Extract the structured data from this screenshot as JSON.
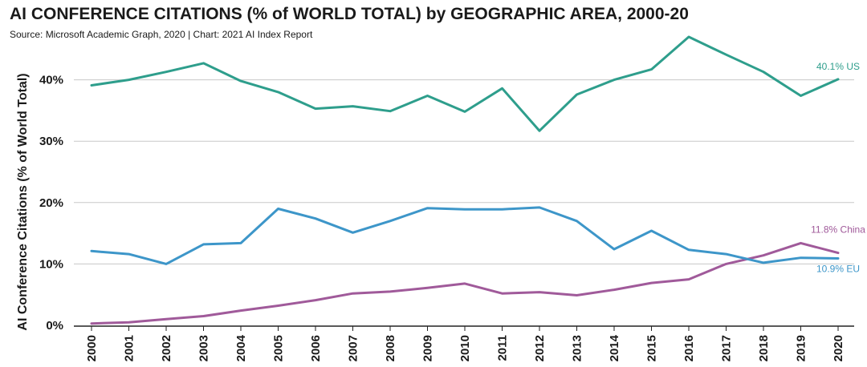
{
  "chart_data": {
    "type": "line",
    "title": "AI CONFERENCE CITATIONS (% of WORLD TOTAL) by GEOGRAPHIC AREA, 2000-20",
    "subtitle": "Source: Microsoft Academic Graph, 2020 | Chart: 2021 AI Index Report",
    "xlabel": "",
    "ylabel": "AI Conference Citations (% of World Total)",
    "ylim": [
      0,
      47
    ],
    "y_ticks": [
      {
        "value": 0,
        "label": "0%"
      },
      {
        "value": 10,
        "label": "10%"
      },
      {
        "value": 20,
        "label": "20%"
      },
      {
        "value": 30,
        "label": "30%"
      },
      {
        "value": 40,
        "label": "40%"
      }
    ],
    "categories": [
      "2000",
      "2001",
      "2002",
      "2003",
      "2004",
      "2005",
      "2006",
      "2007",
      "2008",
      "2009",
      "2010",
      "2011",
      "2012",
      "2013",
      "2014",
      "2015",
      "2016",
      "2017",
      "2018",
      "2019",
      "2020"
    ],
    "series": [
      {
        "name": "US",
        "color": "#2e9e8c",
        "end_label": "40.1% US",
        "values": [
          39.1,
          40.0,
          41.3,
          42.7,
          39.8,
          38.0,
          35.3,
          35.7,
          34.9,
          37.4,
          34.8,
          38.6,
          31.7,
          37.6,
          40.0,
          41.7,
          47.0,
          44.1,
          41.3,
          37.4,
          40.1
        ]
      },
      {
        "name": "EU",
        "color": "#3d96c9",
        "end_label": "10.9% EU",
        "values": [
          12.1,
          11.6,
          10.0,
          13.2,
          13.4,
          19.0,
          17.4,
          15.1,
          17.0,
          19.1,
          18.9,
          18.9,
          19.2,
          17.0,
          12.4,
          15.4,
          12.3,
          11.6,
          10.2,
          11.0,
          10.9
        ]
      },
      {
        "name": "China",
        "color": "#a05a9a",
        "end_label": "11.8% China",
        "values": [
          0.3,
          0.5,
          1.0,
          1.5,
          2.4,
          3.2,
          4.1,
          5.2,
          5.5,
          6.1,
          6.8,
          5.2,
          5.4,
          4.9,
          5.8,
          6.9,
          7.5,
          10.0,
          11.4,
          13.4,
          11.8
        ]
      }
    ]
  }
}
